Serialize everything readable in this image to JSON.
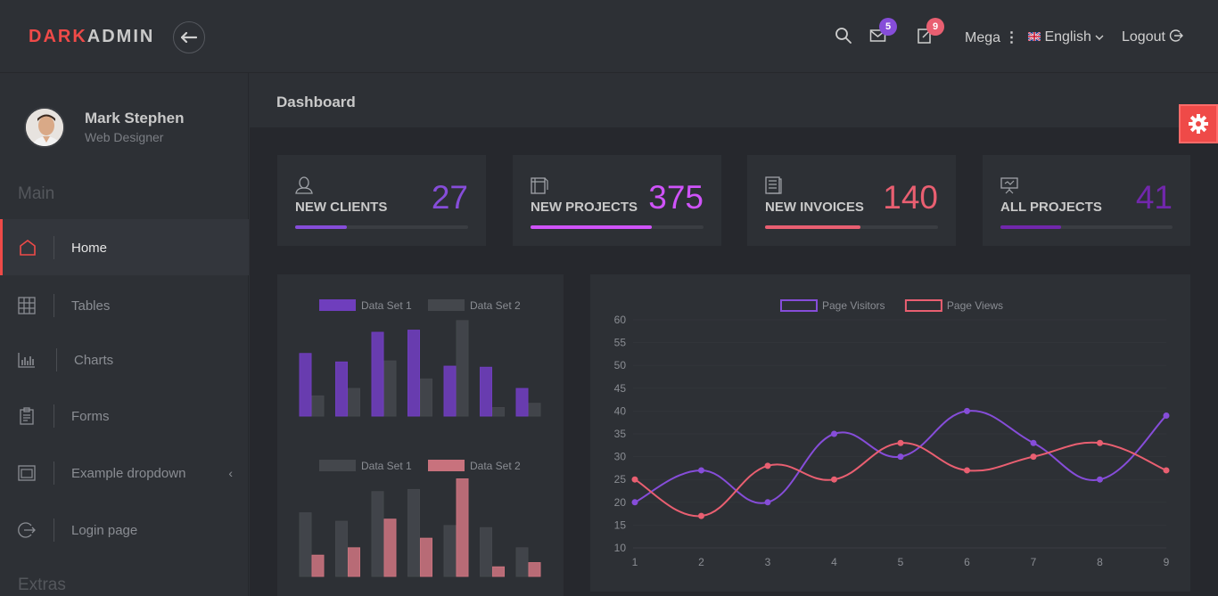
{
  "header": {
    "brand_part1": "DARK",
    "brand_part2": "ADMIN",
    "messages_count": "5",
    "tasks_count": "9",
    "mega_label": "Mega",
    "language_label": "English",
    "logout_label": "Logout"
  },
  "user": {
    "name": "Mark Stephen",
    "role": "Web Designer"
  },
  "sidebar": {
    "main_title": "Main",
    "extras_title": "Extras",
    "items": [
      {
        "label": "Home",
        "icon": "home-icon",
        "active": true
      },
      {
        "label": "Tables",
        "icon": "grid-icon",
        "active": false
      },
      {
        "label": "Charts",
        "icon": "bar-chart-icon",
        "active": false
      },
      {
        "label": "Forms",
        "icon": "clipboard-icon",
        "active": false
      },
      {
        "label": "Example dropdown",
        "icon": "window-icon",
        "active": false
      },
      {
        "label": "Login page",
        "icon": "exit-icon",
        "active": false
      }
    ]
  },
  "page": {
    "title": "Dashboard"
  },
  "stats": [
    {
      "label": "NEW CLIENTS",
      "value": "27",
      "progress": 0.3,
      "color": "#864dd9"
    },
    {
      "label": "NEW PROJECTS",
      "value": "375",
      "progress": 0.7,
      "color": "#cf53f9"
    },
    {
      "label": "NEW INVOICES",
      "value": "140",
      "progress": 0.55,
      "color": "#e95f71"
    },
    {
      "label": "ALL PROJECTS",
      "value": "41",
      "progress": 0.35,
      "color": "#7127ac"
    }
  ],
  "chart_data": [
    {
      "type": "bar",
      "series": [
        {
          "name": "Data Set 1",
          "color": "#6f3ebd",
          "values": [
            59,
            51,
            79,
            81,
            47,
            46,
            26
          ]
        },
        {
          "name": "Data Set 2",
          "color": "#44474c",
          "values": [
            19,
            26,
            52,
            35,
            90,
            8,
            12
          ]
        }
      ],
      "ylim": [
        0,
        100
      ]
    },
    {
      "type": "bar",
      "series": [
        {
          "name": "Data Set 1",
          "color": "#44474c",
          "values": [
            60,
            52,
            80,
            82,
            48,
            46,
            27
          ]
        },
        {
          "name": "Data Set 2",
          "color": "#c8727d",
          "values": [
            20,
            27,
            54,
            36,
            92,
            9,
            13
          ]
        }
      ],
      "ylim": [
        0,
        100
      ]
    },
    {
      "type": "line",
      "x": [
        1,
        2,
        3,
        4,
        5,
        6,
        7,
        8,
        9
      ],
      "series": [
        {
          "name": "Page Visitors",
          "color": "#864dd9",
          "values": [
            20,
            27,
            20,
            35,
            30,
            40,
            33,
            25,
            39
          ]
        },
        {
          "name": "Page Views",
          "color": "#e95f71",
          "values": [
            25,
            17,
            28,
            25,
            33,
            27,
            30,
            33,
            27
          ]
        }
      ],
      "ylim": [
        10,
        60
      ],
      "yticks": [
        10,
        15,
        20,
        25,
        30,
        35,
        40,
        45,
        50,
        55,
        60
      ]
    }
  ]
}
